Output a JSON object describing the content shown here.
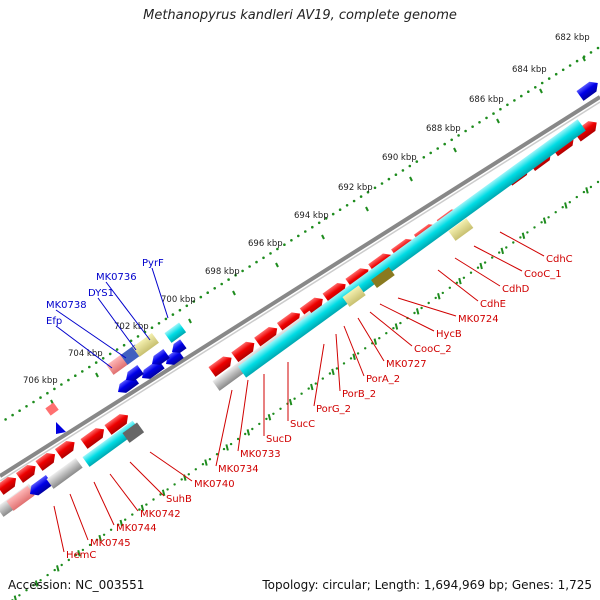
{
  "title": "Methanopyrus kandleri AV19, complete genome",
  "accession_text": "Accession: NC_003551",
  "summary_text": "Topology: circular; Length: 1,694,969 bp; Genes: 1,725",
  "scale_ticks": [
    "682 kbp",
    "684 kbp",
    "686 kbp",
    "688 kbp",
    "690 kbp",
    "692 kbp",
    "694 kbp",
    "696 kbp",
    "698 kbp",
    "700 kbp",
    "702 kbp",
    "704 kbp",
    "706 kbp"
  ],
  "red_gene_labels": [
    "CdhC",
    "CooC_1",
    "CdhD",
    "CdhE",
    "MK0724",
    "HycB",
    "CooC_2",
    "MK0727",
    "PorA_2",
    "PorB_2",
    "PorG_2",
    "SucC",
    "SucD",
    "MK0733",
    "MK0734",
    "MK0740",
    "SuhB",
    "MK0742",
    "MK0744",
    "MK0745",
    "HemC"
  ],
  "blue_gene_labels": [
    "PyrF",
    "MK0736",
    "DYS1",
    "MK0738",
    "Efp"
  ],
  "colors": {
    "forward_gene": "#e8000c",
    "reverse_gene": "#0000e0",
    "scale_dots": "#1e8c1e",
    "backbone": "#888888",
    "cyan_feature": "#00d8e0",
    "red_label": "#d00000",
    "blue_label": "#0000cc"
  }
}
